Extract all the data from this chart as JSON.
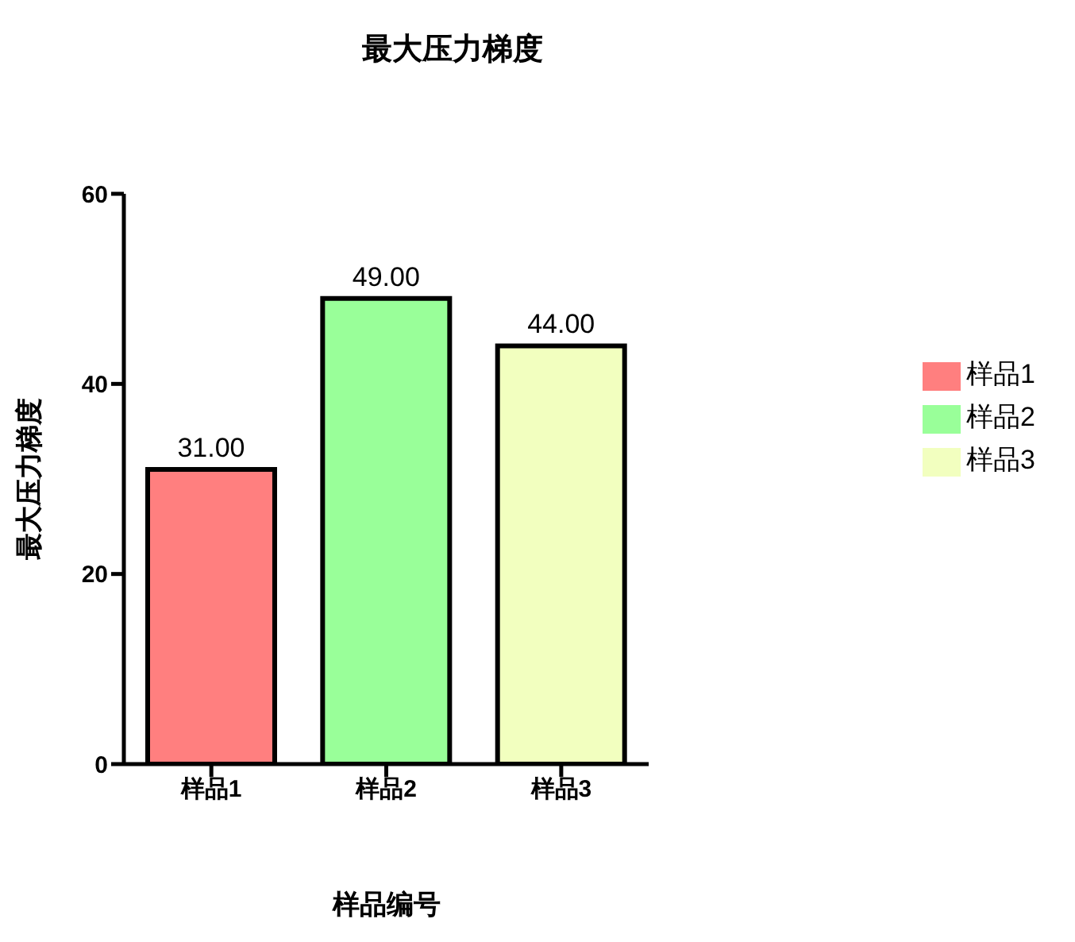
{
  "chart_data": {
    "type": "bar",
    "title": "最大压力梯度",
    "xlabel": "样品编号",
    "ylabel": "最大压力梯度",
    "categories": [
      "样品1",
      "样品2",
      "样品3"
    ],
    "stacked": true,
    "series": [
      {
        "name": "样品1",
        "color": "#ff7f7f",
        "values": [
          31,
          null,
          null
        ],
        "value_labels": [
          "31.00",
          null,
          null
        ]
      },
      {
        "name": "样品2",
        "color": "#99ff99",
        "values": [
          null,
          49,
          null
        ],
        "value_labels": [
          null,
          "49.00",
          null
        ]
      },
      {
        "name": "样品3",
        "color": "#f2ffbf",
        "values": [
          null,
          null,
          44
        ],
        "value_labels": [
          null,
          null,
          "44.00"
        ]
      }
    ],
    "ylim": [
      0,
      60
    ],
    "yticks": [
      0,
      20,
      40,
      60
    ],
    "legend": "right"
  }
}
